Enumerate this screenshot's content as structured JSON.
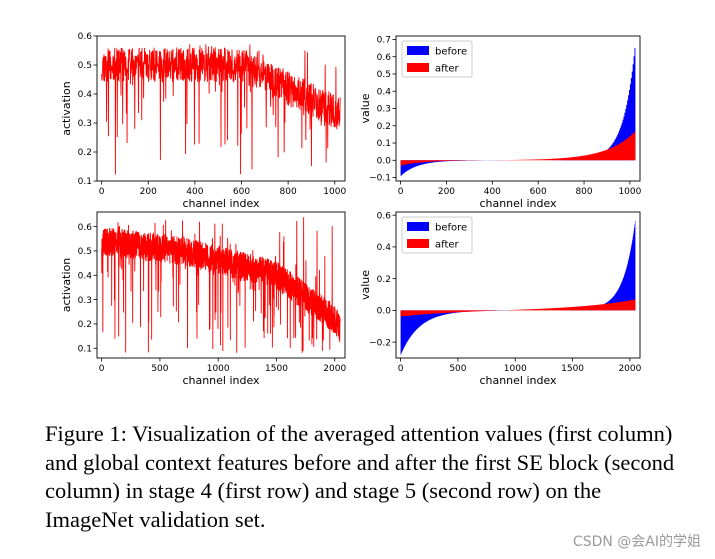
{
  "caption": {
    "text": "Figure 1: Visualization of the averaged attention values (first column) and global context features before and after the first SE block (second column) in stage 4 (first row) and stage 5 (second row) on the ImageNet validation set."
  },
  "watermark": {
    "text": "CSDN @会AI的学姐"
  },
  "colors": {
    "red": "#ff0000",
    "blue": "#0000ff"
  },
  "chart_data": [
    {
      "id": "stage4-attention",
      "type": "line",
      "xlabel": "channel index",
      "ylabel": "activation",
      "n_channels": 1024,
      "xlim": [
        -20,
        1044
      ],
      "ylim": [
        0.1,
        0.6
      ],
      "xticks": [
        0,
        200,
        400,
        600,
        800,
        1000
      ],
      "yticks": [
        0.1,
        0.2,
        0.3,
        0.4,
        0.5,
        0.6
      ],
      "ytick_labels": [
        "0.1",
        "0.2",
        "0.3",
        "0.4",
        "0.5",
        "0.6"
      ],
      "trend": {
        "x": [
          0,
          600,
          800,
          1024
        ],
        "y": [
          0.5,
          0.5,
          0.42,
          0.33
        ]
      },
      "noise_range": [
        0.12,
        0.58
      ],
      "series": [
        {
          "color": "#ff0000"
        }
      ]
    },
    {
      "id": "stage4-context",
      "type": "bar",
      "xlabel": "channel index",
      "ylabel": "value",
      "n_channels": 1024,
      "xlim": [
        -20,
        1044
      ],
      "ylim": [
        -0.12,
        0.72
      ],
      "xticks": [
        0,
        200,
        400,
        600,
        800,
        1000
      ],
      "yticks": [
        -0.1,
        0.0,
        0.1,
        0.2,
        0.3,
        0.4,
        0.5,
        0.6,
        0.7
      ],
      "ytick_labels": [
        "−0.1",
        "0.0",
        "0.1",
        "0.2",
        "0.3",
        "0.4",
        "0.5",
        "0.6",
        "0.7"
      ],
      "legend_position": "top-left",
      "series": [
        {
          "name": "before",
          "color": "#0000ff",
          "min": -0.09,
          "max": 0.69,
          "neg_scale": 0.07,
          "pos_scale": 0.05
        },
        {
          "name": "after",
          "color": "#ff0000",
          "min": -0.03,
          "max": 0.17,
          "neg_scale": 0.1,
          "pos_scale": 0.12
        }
      ]
    },
    {
      "id": "stage5-attention",
      "type": "line",
      "xlabel": "channel index",
      "ylabel": "activation",
      "n_channels": 2048,
      "xlim": [
        -40,
        2088
      ],
      "ylim": [
        0.06,
        0.66
      ],
      "xticks": [
        0,
        500,
        1000,
        1500,
        2000
      ],
      "yticks": [
        0.1,
        0.2,
        0.3,
        0.4,
        0.5,
        0.6
      ],
      "ytick_labels": [
        "0.1",
        "0.2",
        "0.3",
        "0.4",
        "0.5",
        "0.6"
      ],
      "trend": {
        "x": [
          0,
          700,
          1500,
          2000,
          2048
        ],
        "y": [
          0.54,
          0.5,
          0.4,
          0.22,
          0.18
        ]
      },
      "noise_range": [
        0.08,
        0.64
      ],
      "series": [
        {
          "color": "#ff0000"
        }
      ]
    },
    {
      "id": "stage5-context",
      "type": "bar",
      "xlabel": "channel index",
      "ylabel": "value",
      "n_channels": 2048,
      "xlim": [
        -40,
        2088
      ],
      "ylim": [
        -0.3,
        0.62
      ],
      "xticks": [
        0,
        500,
        1000,
        1500,
        2000
      ],
      "yticks": [
        -0.2,
        0.0,
        0.2,
        0.4,
        0.6
      ],
      "ytick_labels": [
        "−0.2",
        "0.0",
        "0.2",
        "0.4",
        "0.6"
      ],
      "legend_position": "top-left",
      "series": [
        {
          "name": "before",
          "color": "#0000ff",
          "min": -0.28,
          "max": 0.58,
          "neg_scale": 0.08,
          "pos_scale": 0.05
        },
        {
          "name": "after",
          "color": "#ff0000",
          "min": -0.04,
          "max": 0.07,
          "neg_scale": 0.25,
          "pos_scale": 0.25
        }
      ]
    }
  ]
}
